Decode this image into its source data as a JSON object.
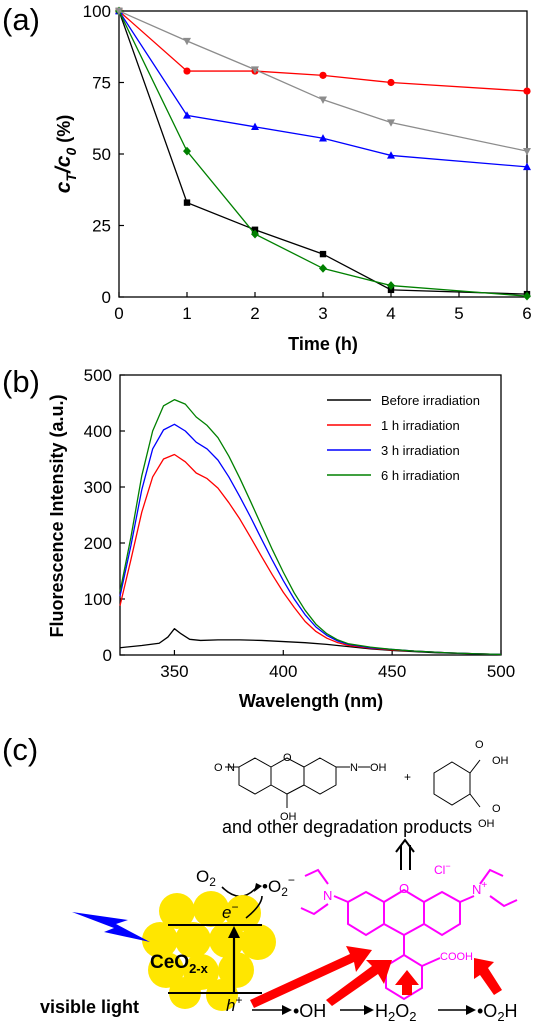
{
  "colors": {
    "black": "#000000",
    "red": "#ff0000",
    "blue": "#0000ff",
    "green": "#008000",
    "gray": "#8c8c8c",
    "magenta": "#ff00ff",
    "yellow": "#ffe600",
    "arrow_red": "#ff0000",
    "bolt_blue": "#0000ff"
  },
  "panels": {
    "a": "(a)",
    "b": "(b)",
    "c": "(c)"
  },
  "chart_data": [
    {
      "panel": "(a)",
      "type": "line",
      "xlabel": "Time (h)",
      "ylabel_main": "c",
      "ylabel_sub1": "T",
      "ylabel_mid": "/c",
      "ylabel_sub2": "0",
      "ylabel_tail": " (%)",
      "xlim": [
        0,
        6
      ],
      "ylim": [
        0,
        100
      ],
      "xticks": [
        "0",
        "1",
        "2",
        "3",
        "4",
        "5",
        "6"
      ],
      "yticks": [
        "0",
        "25",
        "50",
        "75",
        "100"
      ],
      "grid": false,
      "series": [
        {
          "color": "#000000",
          "marker": "square",
          "x": [
            0,
            1,
            2,
            3,
            4,
            6
          ],
          "y": [
            100,
            33,
            23.5,
            15,
            2.5,
            1
          ]
        },
        {
          "color": "#ff0000",
          "marker": "circle",
          "x": [
            0,
            1,
            2,
            3,
            4,
            6
          ],
          "y": [
            100,
            79,
            79,
            77.5,
            75,
            72
          ]
        },
        {
          "color": "#0000ff",
          "marker": "triangle-up",
          "x": [
            0,
            1,
            2,
            3,
            4,
            6
          ],
          "y": [
            100,
            63.5,
            59.5,
            55.5,
            49.5,
            45.5
          ]
        },
        {
          "color": "#008000",
          "marker": "diamond",
          "x": [
            0,
            1,
            2,
            3,
            4,
            6
          ],
          "y": [
            100,
            51,
            22,
            10,
            4,
            0.3
          ]
        },
        {
          "color": "#8c8c8c",
          "marker": "triangle-down",
          "x": [
            0,
            1,
            2,
            3,
            4,
            6
          ],
          "y": [
            100,
            89.5,
            79.5,
            69,
            61,
            51
          ]
        }
      ]
    },
    {
      "panel": "(b)",
      "type": "line",
      "xlabel": "Wavelength (nm)",
      "ylabel": "Fluorescence Intensity (a.u.)",
      "xlim": [
        325,
        500
      ],
      "ylim": [
        0,
        500
      ],
      "xticks": [
        "350",
        "400",
        "450",
        "500"
      ],
      "yticks": [
        "0",
        "100",
        "200",
        "300",
        "400",
        "500"
      ],
      "legend_position": "top-right",
      "grid": false,
      "series": [
        {
          "name": "Before irradiation",
          "color": "#000000",
          "x": [
            325,
            335,
            343,
            347,
            350,
            353,
            357,
            362,
            370,
            380,
            390,
            400,
            410,
            420,
            430,
            440,
            450,
            460,
            470,
            480,
            490,
            500
          ],
          "y": [
            13,
            17,
            21,
            32,
            47,
            38,
            28,
            26,
            27,
            27,
            26,
            24,
            22,
            19,
            15,
            11,
            8,
            6,
            4,
            3,
            2,
            1
          ]
        },
        {
          "name": "1 h irradiation",
          "color": "#ff0000",
          "x": [
            325,
            330,
            335,
            340,
            345,
            350,
            355,
            360,
            365,
            370,
            375,
            380,
            385,
            390,
            395,
            400,
            405,
            410,
            415,
            420,
            425,
            430,
            440,
            450,
            460,
            475,
            490,
            500
          ],
          "y": [
            88,
            170,
            255,
            318,
            350,
            358,
            345,
            325,
            315,
            298,
            272,
            243,
            210,
            176,
            143,
            112,
            85,
            60,
            42,
            30,
            22,
            17,
            12,
            9,
            7,
            4,
            2,
            1
          ]
        },
        {
          "name": "3 h irradiation",
          "color": "#0000ff",
          "x": [
            325,
            330,
            335,
            340,
            345,
            350,
            355,
            360,
            365,
            370,
            375,
            380,
            385,
            390,
            395,
            400,
            405,
            410,
            415,
            420,
            425,
            430,
            440,
            450,
            460,
            475,
            490,
            500
          ],
          "y": [
            105,
            195,
            295,
            368,
            402,
            412,
            400,
            380,
            368,
            348,
            318,
            283,
            246,
            207,
            169,
            133,
            100,
            72,
            50,
            35,
            25,
            19,
            13,
            10,
            7,
            4,
            2,
            1
          ]
        },
        {
          "name": "6 h irradiation",
          "color": "#008000",
          "x": [
            325,
            330,
            335,
            340,
            345,
            350,
            355,
            360,
            365,
            370,
            375,
            380,
            385,
            390,
            395,
            400,
            405,
            410,
            415,
            420,
            425,
            430,
            440,
            450,
            460,
            475,
            490,
            500
          ],
          "y": [
            113,
            210,
            320,
            400,
            445,
            456,
            448,
            425,
            410,
            388,
            355,
            316,
            274,
            231,
            188,
            148,
            111,
            80,
            55,
            38,
            27,
            20,
            14,
            10,
            7,
            4,
            2,
            1
          ]
        }
      ]
    }
  ],
  "scheme": {
    "and_other": "and other degradation products",
    "o2": "O",
    "o2_sub": "2",
    "superoxide_dot": "•O",
    "superoxide_sub": "2",
    "superoxide_sup": "−",
    "electron": "e",
    "electron_sup": "−",
    "hole": "h",
    "hole_sup": "+",
    "ceo2_main": "CeO",
    "ceo2_sub": "2-x",
    "visible_light": "visible light",
    "oh_radical": "•OH",
    "h2o2_h": "H",
    "h2o2_sub1": "2",
    "h2o2_o": "O",
    "h2o2_sub2": "2",
    "o2h_dot": "•O",
    "o2h_sub": "2",
    "o2h_h": "H",
    "plus": "+",
    "chloride": "Cl",
    "chloride_sup": "−",
    "n_plus": "N",
    "n_plus_sup": "+",
    "n_left": "N",
    "o_ring": "O",
    "cooh": "COOH",
    "prod1_o": "O",
    "prod1_n1": "N",
    "prod1_n2": "N",
    "prod1_oh_bottom": "OH",
    "prod1_oh_right": "OH",
    "prod1_o_ring": "O",
    "prod2_oh1": "OH",
    "prod2_oh2": "OH",
    "prod2_o1": "O",
    "prod2_o2": "O"
  }
}
